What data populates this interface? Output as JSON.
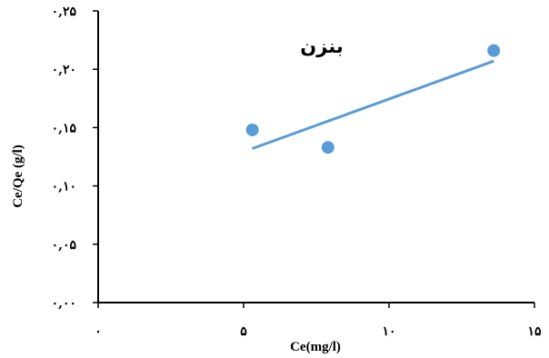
{
  "chart_data": {
    "type": "scatter",
    "title": "بنزن",
    "xlabel": "Ce(mg/l)",
    "ylabel": "Ce/Qe (g/l)",
    "xlim": [
      0,
      15
    ],
    "ylim": [
      0,
      0.25
    ],
    "x_ticks": [
      {
        "value": 0,
        "label": "۰"
      },
      {
        "value": 5,
        "label": "۵"
      },
      {
        "value": 10,
        "label": "۱۰"
      },
      {
        "value": 15,
        "label": "۱۵"
      }
    ],
    "y_ticks": [
      {
        "value": 0,
        "label": "۰,۰۰"
      },
      {
        "value": 0.05,
        "label": "۰,۰۵"
      },
      {
        "value": 0.1,
        "label": "۰,۱۰"
      },
      {
        "value": 0.15,
        "label": "۰,۱۵"
      },
      {
        "value": 0.2,
        "label": "۰,۲۰"
      },
      {
        "value": 0.25,
        "label": "۰,۲۵"
      }
    ],
    "series": [
      {
        "points": [
          {
            "x": 5.3,
            "y": 0.148
          },
          {
            "x": 7.9,
            "y": 0.133
          },
          {
            "x": 13.6,
            "y": 0.216
          }
        ],
        "trendline": {
          "x": [
            5.3,
            13.6
          ],
          "y": [
            0.132,
            0.207
          ]
        }
      }
    ],
    "colors": {
      "marker": "#5b9bd5",
      "trendline": "#5b9bd5",
      "axis": "#000000"
    },
    "grid": false,
    "legend": "none"
  }
}
